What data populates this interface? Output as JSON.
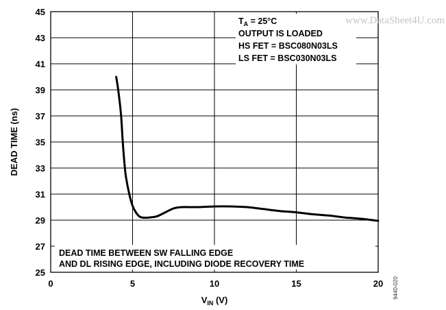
{
  "chart_data": {
    "type": "line",
    "title": "",
    "xlabel": {
      "main": "V",
      "sub": "IN",
      "unit": " (V)"
    },
    "ylabel": "DEAD TIME (ns)",
    "xlim": [
      0,
      20
    ],
    "ylim": [
      25,
      45
    ],
    "x_ticks": [
      "0",
      "5",
      "10",
      "15",
      "20"
    ],
    "y_ticks": [
      "25",
      "27",
      "29",
      "31",
      "33",
      "35",
      "37",
      "39",
      "41",
      "43",
      "45"
    ],
    "grid": true,
    "series": [
      {
        "color": "#000000",
        "x": [
          4.0,
          4.1,
          4.2,
          4.3,
          4.4,
          4.5,
          4.6,
          4.8,
          5.0,
          5.2,
          5.4,
          5.6,
          6.0,
          6.5,
          7.0,
          7.5,
          8.0,
          9.0,
          10.0,
          11.0,
          12.0,
          13.0,
          14.0,
          15.0,
          16.0,
          17.0,
          18.0,
          19.0,
          20.0
        ],
        "y": [
          40.0,
          39.2,
          38.2,
          37.0,
          35.0,
          33.4,
          32.3,
          31.0,
          30.1,
          29.6,
          29.3,
          29.2,
          29.2,
          29.3,
          29.6,
          29.9,
          30.0,
          30.0,
          30.05,
          30.05,
          30.0,
          29.85,
          29.7,
          29.6,
          29.45,
          29.35,
          29.2,
          29.1,
          28.95
        ]
      }
    ],
    "annotations": {
      "conditions": {
        "ta": {
          "main": "T",
          "sub": "A",
          "rest": " = 25°C"
        },
        "lines": [
          "OUTPUT IS LOADED",
          "HS FET = BSC080N03LS",
          "LS FET = BSC030N03LS"
        ]
      },
      "note": [
        "DEAD TIME BETWEEN SW FALLING EDGE",
        "AND DL RISING EDGE, INCLUDING DIODE RECOVERY TIME"
      ]
    }
  },
  "watermark": "www.DataSheet4U.com",
  "figure_id": "9440-020"
}
